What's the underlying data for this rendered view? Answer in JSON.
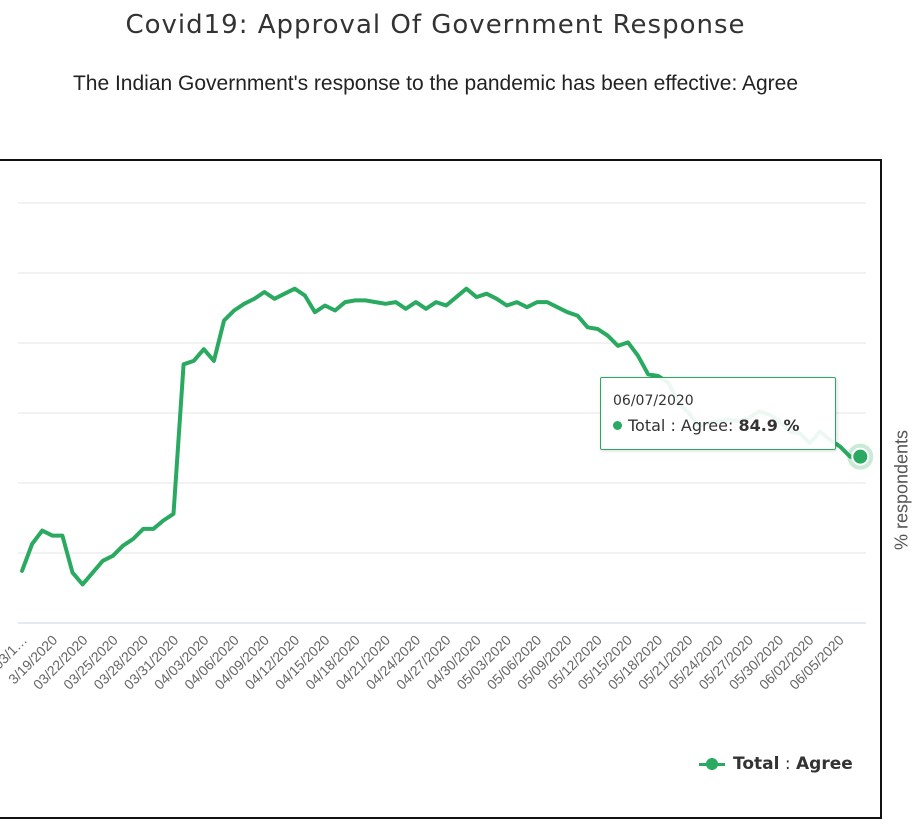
{
  "title": "Covid19: Approval Of Government Response",
  "subtitle": "The Indian Government's response to the pandemic has been effective: Agree",
  "colors": {
    "series": "#2aa960",
    "grid": "#e6e6e6",
    "frame": "#111111"
  },
  "tooltip": {
    "date": "06/07/2020",
    "series_label": "Total : Agree:",
    "value": "84.9 %"
  },
  "legend": {
    "series": "Total",
    "separator": ":",
    "category": "Agree",
    "placement": "bottom-right"
  },
  "chart_data": {
    "type": "line",
    "title": "Covid19: Approval Of Government Response",
    "subtitle": "The Indian Government's response to the pandemic has been effective: Agree",
    "xlabel": "",
    "ylabel": "% respondents",
    "grid": true,
    "legend_placement": "bottom-right",
    "x_ticks": [
      "03/1…",
      "03/19/2020",
      "03/22/2020",
      "03/25/2020",
      "03/28/2020",
      "03/31/2020",
      "04/03/2020",
      "04/06/2020",
      "04/09/2020",
      "04/12/2020",
      "04/15/2020",
      "04/18/2020",
      "04/21/2020",
      "04/24/2020",
      "04/27/2020",
      "04/30/2020",
      "05/03/2020",
      "05/06/2020",
      "05/09/2020",
      "05/12/2020",
      "05/15/2020",
      "05/18/2020",
      "05/21/2020",
      "05/24/2020",
      "05/27/2020",
      "05/30/2020",
      "06/02/2020",
      "06/05/2020"
    ],
    "x_tick_labels": [
      "03/1…",
      "3/19/2020",
      "03/22/2020",
      "03/25/2020",
      "03/28/2020",
      "03/31/2020",
      "04/03/2020",
      "04/06/2020",
      "04/09/2020",
      "04/12/2020",
      "04/15/2020",
      "04/18/2020",
      "04/21/2020",
      "04/24/2020",
      "04/27/2020",
      "04/30/2020",
      "05/03/2020",
      "05/06/2020",
      "05/09/2020",
      "05/12/2020",
      "05/15/2020",
      "05/18/2020",
      "05/21/2020",
      "05/24/2020",
      "05/27/2020",
      "05/30/2020",
      "06/02/2020",
      "06/05/2020"
    ],
    "series": [
      {
        "name": "Total : Agree",
        "x": [
          "03/16/2020",
          "03/17/2020",
          "03/18/2020",
          "03/19/2020",
          "03/20/2020",
          "03/21/2020",
          "03/22/2020",
          "03/23/2020",
          "03/24/2020",
          "03/25/2020",
          "03/26/2020",
          "03/27/2020",
          "03/28/2020",
          "03/29/2020",
          "03/30/2020",
          "03/31/2020",
          "04/01/2020",
          "04/02/2020",
          "04/03/2020",
          "04/04/2020",
          "04/05/2020",
          "04/06/2020",
          "04/07/2020",
          "04/08/2020",
          "04/09/2020",
          "04/10/2020",
          "04/11/2020",
          "04/12/2020",
          "04/13/2020",
          "04/14/2020",
          "04/15/2020",
          "04/16/2020",
          "04/17/2020",
          "04/18/2020",
          "04/19/2020",
          "04/20/2020",
          "04/21/2020",
          "04/22/2020",
          "04/23/2020",
          "04/24/2020",
          "04/25/2020",
          "04/26/2020",
          "04/27/2020",
          "04/28/2020",
          "04/29/2020",
          "04/30/2020",
          "05/01/2020",
          "05/02/2020",
          "05/03/2020",
          "05/04/2020",
          "05/05/2020",
          "05/06/2020",
          "05/07/2020",
          "05/08/2020",
          "05/09/2020",
          "05/10/2020",
          "05/11/2020",
          "05/12/2020",
          "05/13/2020",
          "05/14/2020",
          "05/15/2020",
          "05/16/2020",
          "05/17/2020",
          "05/18/2020",
          "05/19/2020",
          "05/20/2020",
          "05/21/2020",
          "05/22/2020",
          "05/23/2020",
          "05/24/2020",
          "05/25/2020",
          "05/26/2020",
          "05/27/2020",
          "05/28/2020",
          "05/29/2020",
          "05/30/2020",
          "05/31/2020",
          "06/01/2020",
          "06/02/2020",
          "06/03/2020",
          "06/04/2020",
          "06/05/2020",
          "06/06/2020",
          "06/07/2020"
        ],
        "values": [
          78.1,
          79.7,
          80.5,
          80.2,
          80.2,
          78.0,
          77.3,
          78.0,
          78.7,
          79.0,
          79.6,
          80.0,
          80.6,
          80.6,
          81.1,
          81.5,
          90.4,
          90.6,
          91.3,
          90.6,
          93.0,
          93.6,
          94.0,
          94.3,
          94.7,
          94.3,
          94.6,
          94.9,
          94.5,
          93.5,
          93.9,
          93.6,
          94.1,
          94.2,
          94.2,
          94.1,
          94.0,
          94.1,
          93.7,
          94.1,
          93.7,
          94.1,
          93.9,
          94.4,
          94.9,
          94.4,
          94.6,
          94.3,
          93.9,
          94.1,
          93.8,
          94.1,
          94.1,
          93.8,
          93.5,
          93.3,
          92.6,
          92.5,
          92.1,
          91.5,
          91.7,
          90.9,
          89.8,
          89.7,
          89.3,
          88.1,
          87.5,
          86.7,
          86.9,
          87.0,
          87.1,
          87.0,
          87.2,
          87.6,
          87.4,
          87.0,
          86.4,
          86.3,
          85.7,
          86.4,
          85.9,
          85.5,
          84.9,
          84.9
        ]
      }
    ],
    "ylim": [
      75,
      100
    ]
  }
}
